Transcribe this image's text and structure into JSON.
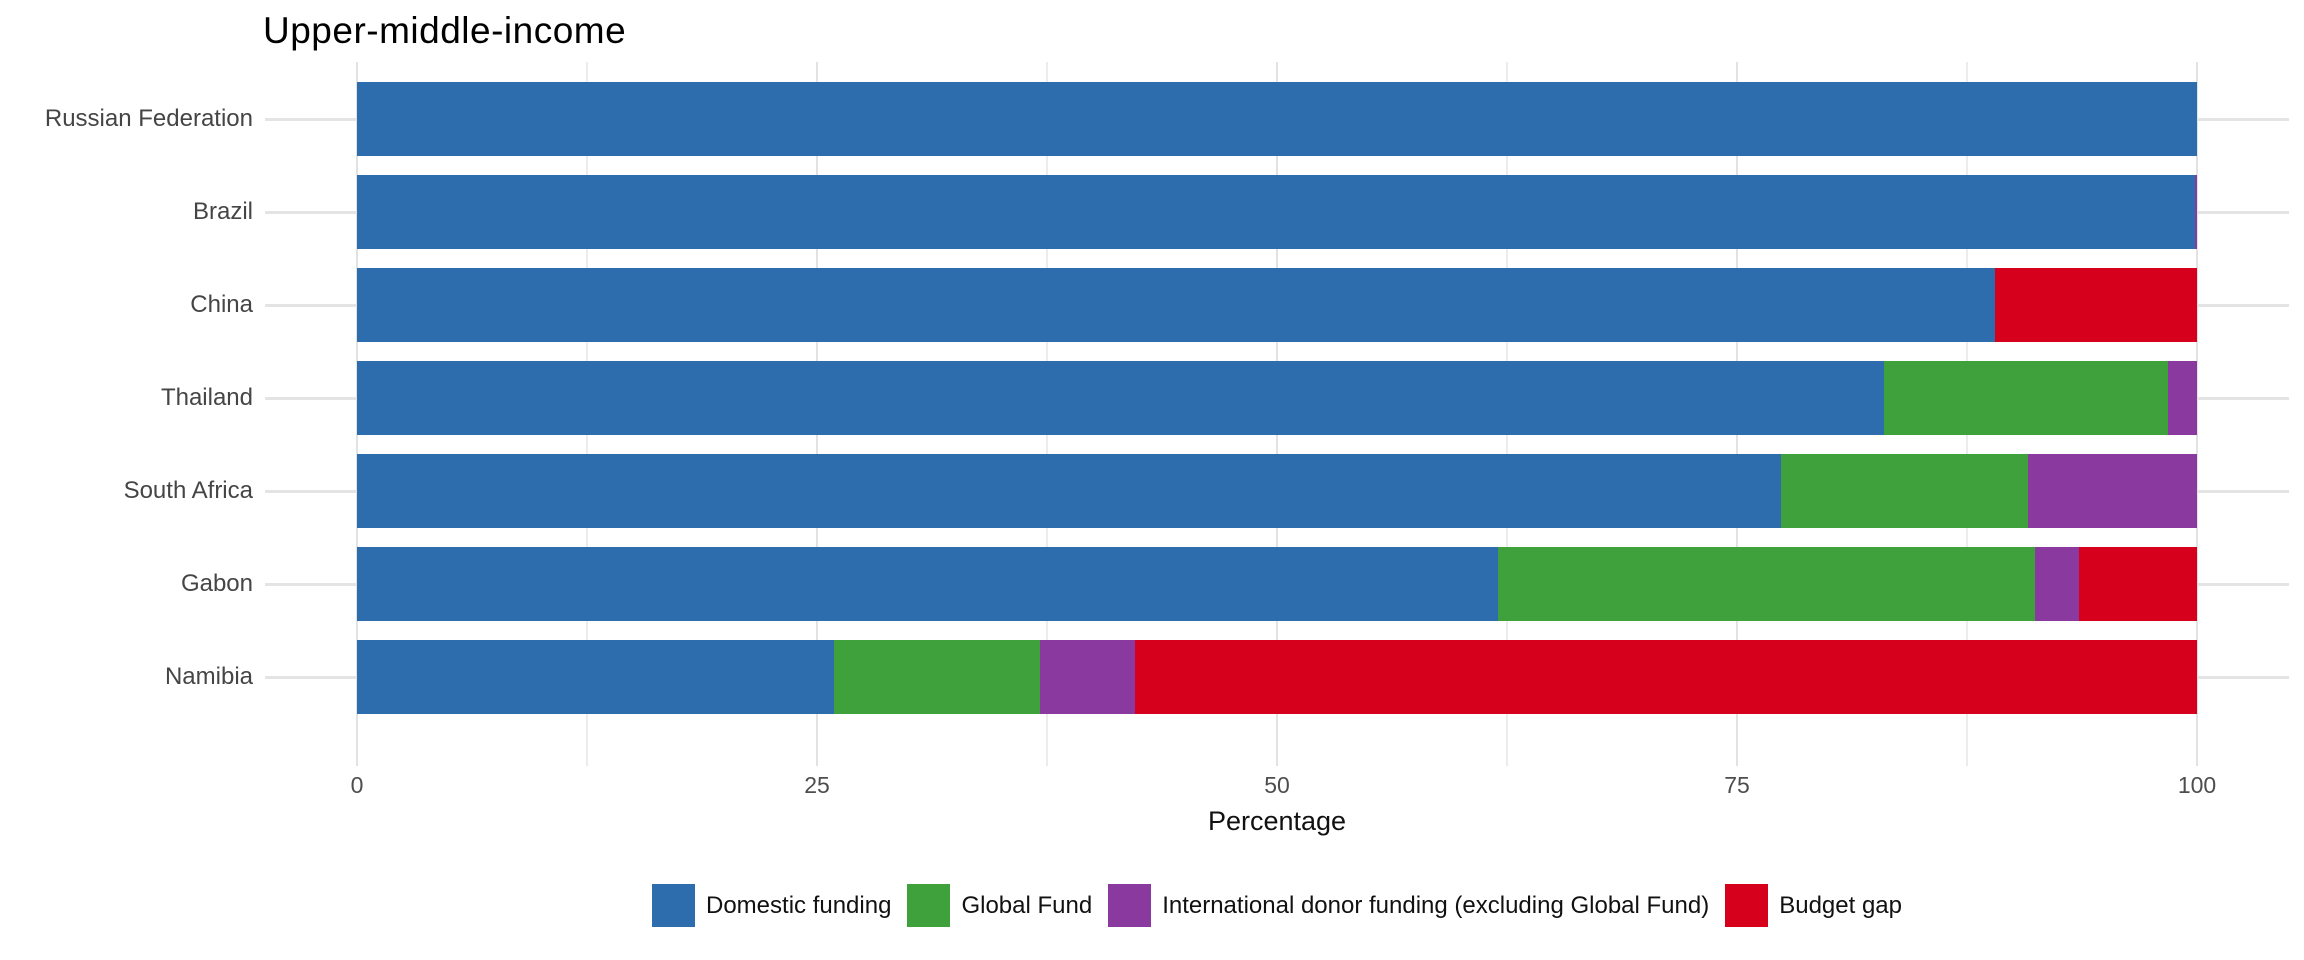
{
  "title": "Upper-middle-income",
  "chart_data": {
    "type": "bar",
    "orientation": "horizontal",
    "stacked": true,
    "title": "Upper-middle-income",
    "xlabel": "Percentage",
    "ylabel": "",
    "xlim": [
      0,
      100
    ],
    "x_major_ticks": [
      0,
      25,
      50,
      75,
      100
    ],
    "x_minor_ticks": [
      12.5,
      37.5,
      62.5,
      87.5
    ],
    "grid": true,
    "legend_position": "bottom",
    "categories": [
      "Russian Federation",
      "Brazil",
      "China",
      "Thailand",
      "South Africa",
      "Gabon",
      "Namibia"
    ],
    "series": [
      {
        "name": "Domestic funding",
        "color": "#2d6cad",
        "values": [
          100,
          99.9,
          89.0,
          83.0,
          77.4,
          62.0,
          25.9
        ]
      },
      {
        "name": "Global Fund",
        "color": "#3fa13c",
        "values": [
          0,
          0,
          0,
          15.4,
          13.4,
          29.2,
          11.2
        ]
      },
      {
        "name": "International donor funding (excluding Global Fund)",
        "color": "#8a399f",
        "values": [
          0,
          0.1,
          0,
          1.6,
          9.2,
          2.4,
          5.2
        ]
      },
      {
        "name": "Budget gap",
        "color": "#d6001c",
        "values": [
          0,
          0,
          11.0,
          0,
          0,
          6.4,
          57.7
        ]
      }
    ]
  }
}
